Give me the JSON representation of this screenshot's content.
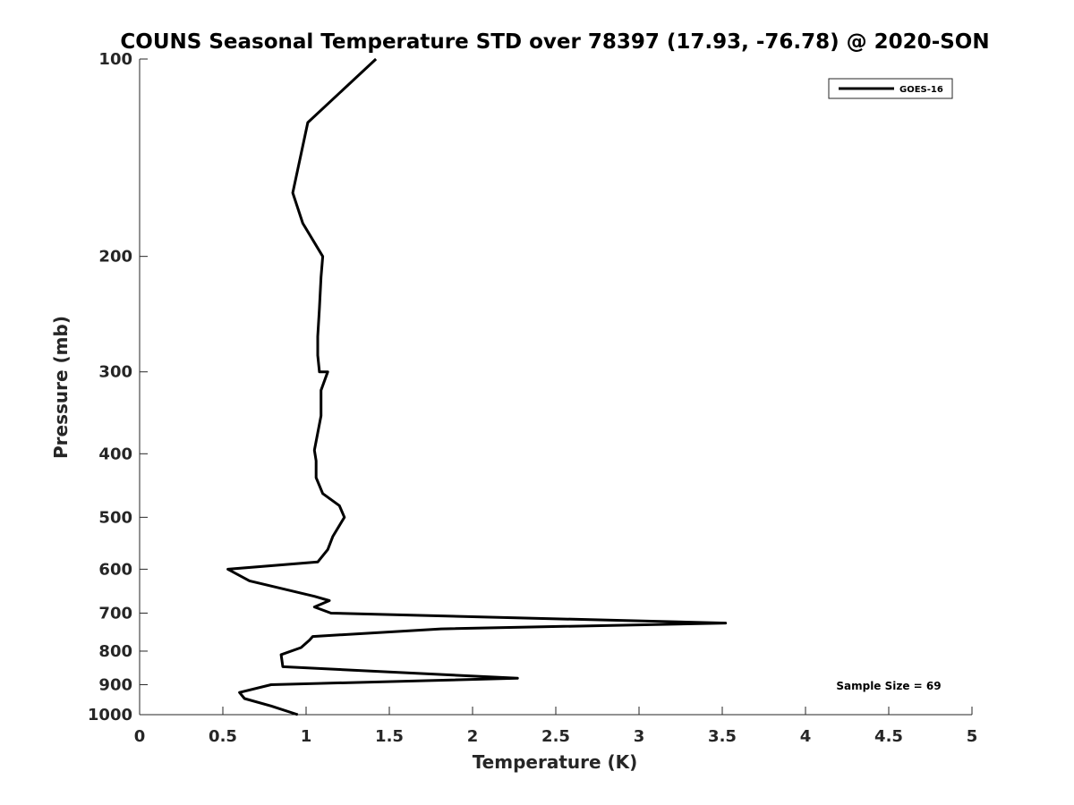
{
  "chart_data": {
    "type": "line",
    "title": "COUNS Seasonal Temperature STD over 78397 (17.93, -76.78) @ 2020-SON",
    "xlabel": "Temperature (K)",
    "ylabel": "Pressure (mb)",
    "xlim": [
      0,
      5
    ],
    "ylim": [
      100,
      1000
    ],
    "yscale": "log",
    "y_reversed": true,
    "xticks": [
      0,
      0.5,
      1,
      1.5,
      2,
      2.5,
      3,
      3.5,
      4,
      4.5,
      5
    ],
    "xtick_labels": [
      "0",
      "0.5",
      "1",
      "1.5",
      "2",
      "2.5",
      "3",
      "3.5",
      "4",
      "4.5",
      "5"
    ],
    "yticks": [
      100,
      200,
      300,
      400,
      500,
      600,
      700,
      800,
      900,
      1000
    ],
    "ytick_labels": [
      "100",
      "200",
      "300",
      "400",
      "500",
      "600",
      "700",
      "800",
      "900",
      "1000"
    ],
    "grid": false,
    "legend_position": "top-right",
    "annotation": "Sample Size = 69",
    "colors": {
      "line": "#000000",
      "axis": "#262626",
      "background": "#ffffff"
    },
    "series": [
      {
        "name": "GOES-16",
        "x": [
          1.42,
          1.01,
          0.92,
          0.98,
          1.1,
          1.09,
          1.08,
          1.07,
          1.07,
          1.08,
          1.13,
          1.09,
          1.09,
          1.05,
          1.06,
          1.06,
          1.1,
          1.2,
          1.23,
          1.16,
          1.13,
          1.07,
          0.53,
          0.66,
          1.05,
          1.14,
          1.05,
          1.15,
          3.52,
          1.81,
          1.04,
          1.02,
          0.97,
          0.85,
          0.86,
          2.27,
          0.79,
          0.6,
          0.63,
          0.79,
          0.95
        ],
        "y": [
          100,
          125,
          160,
          178,
          200,
          215,
          240,
          265,
          283,
          300,
          300,
          320,
          350,
          395,
          410,
          435,
          460,
          480,
          500,
          535,
          560,
          585,
          600,
          625,
          660,
          670,
          685,
          700,
          725,
          740,
          760,
          770,
          790,
          810,
          845,
          880,
          900,
          925,
          945,
          970,
          1000
        ]
      }
    ]
  }
}
